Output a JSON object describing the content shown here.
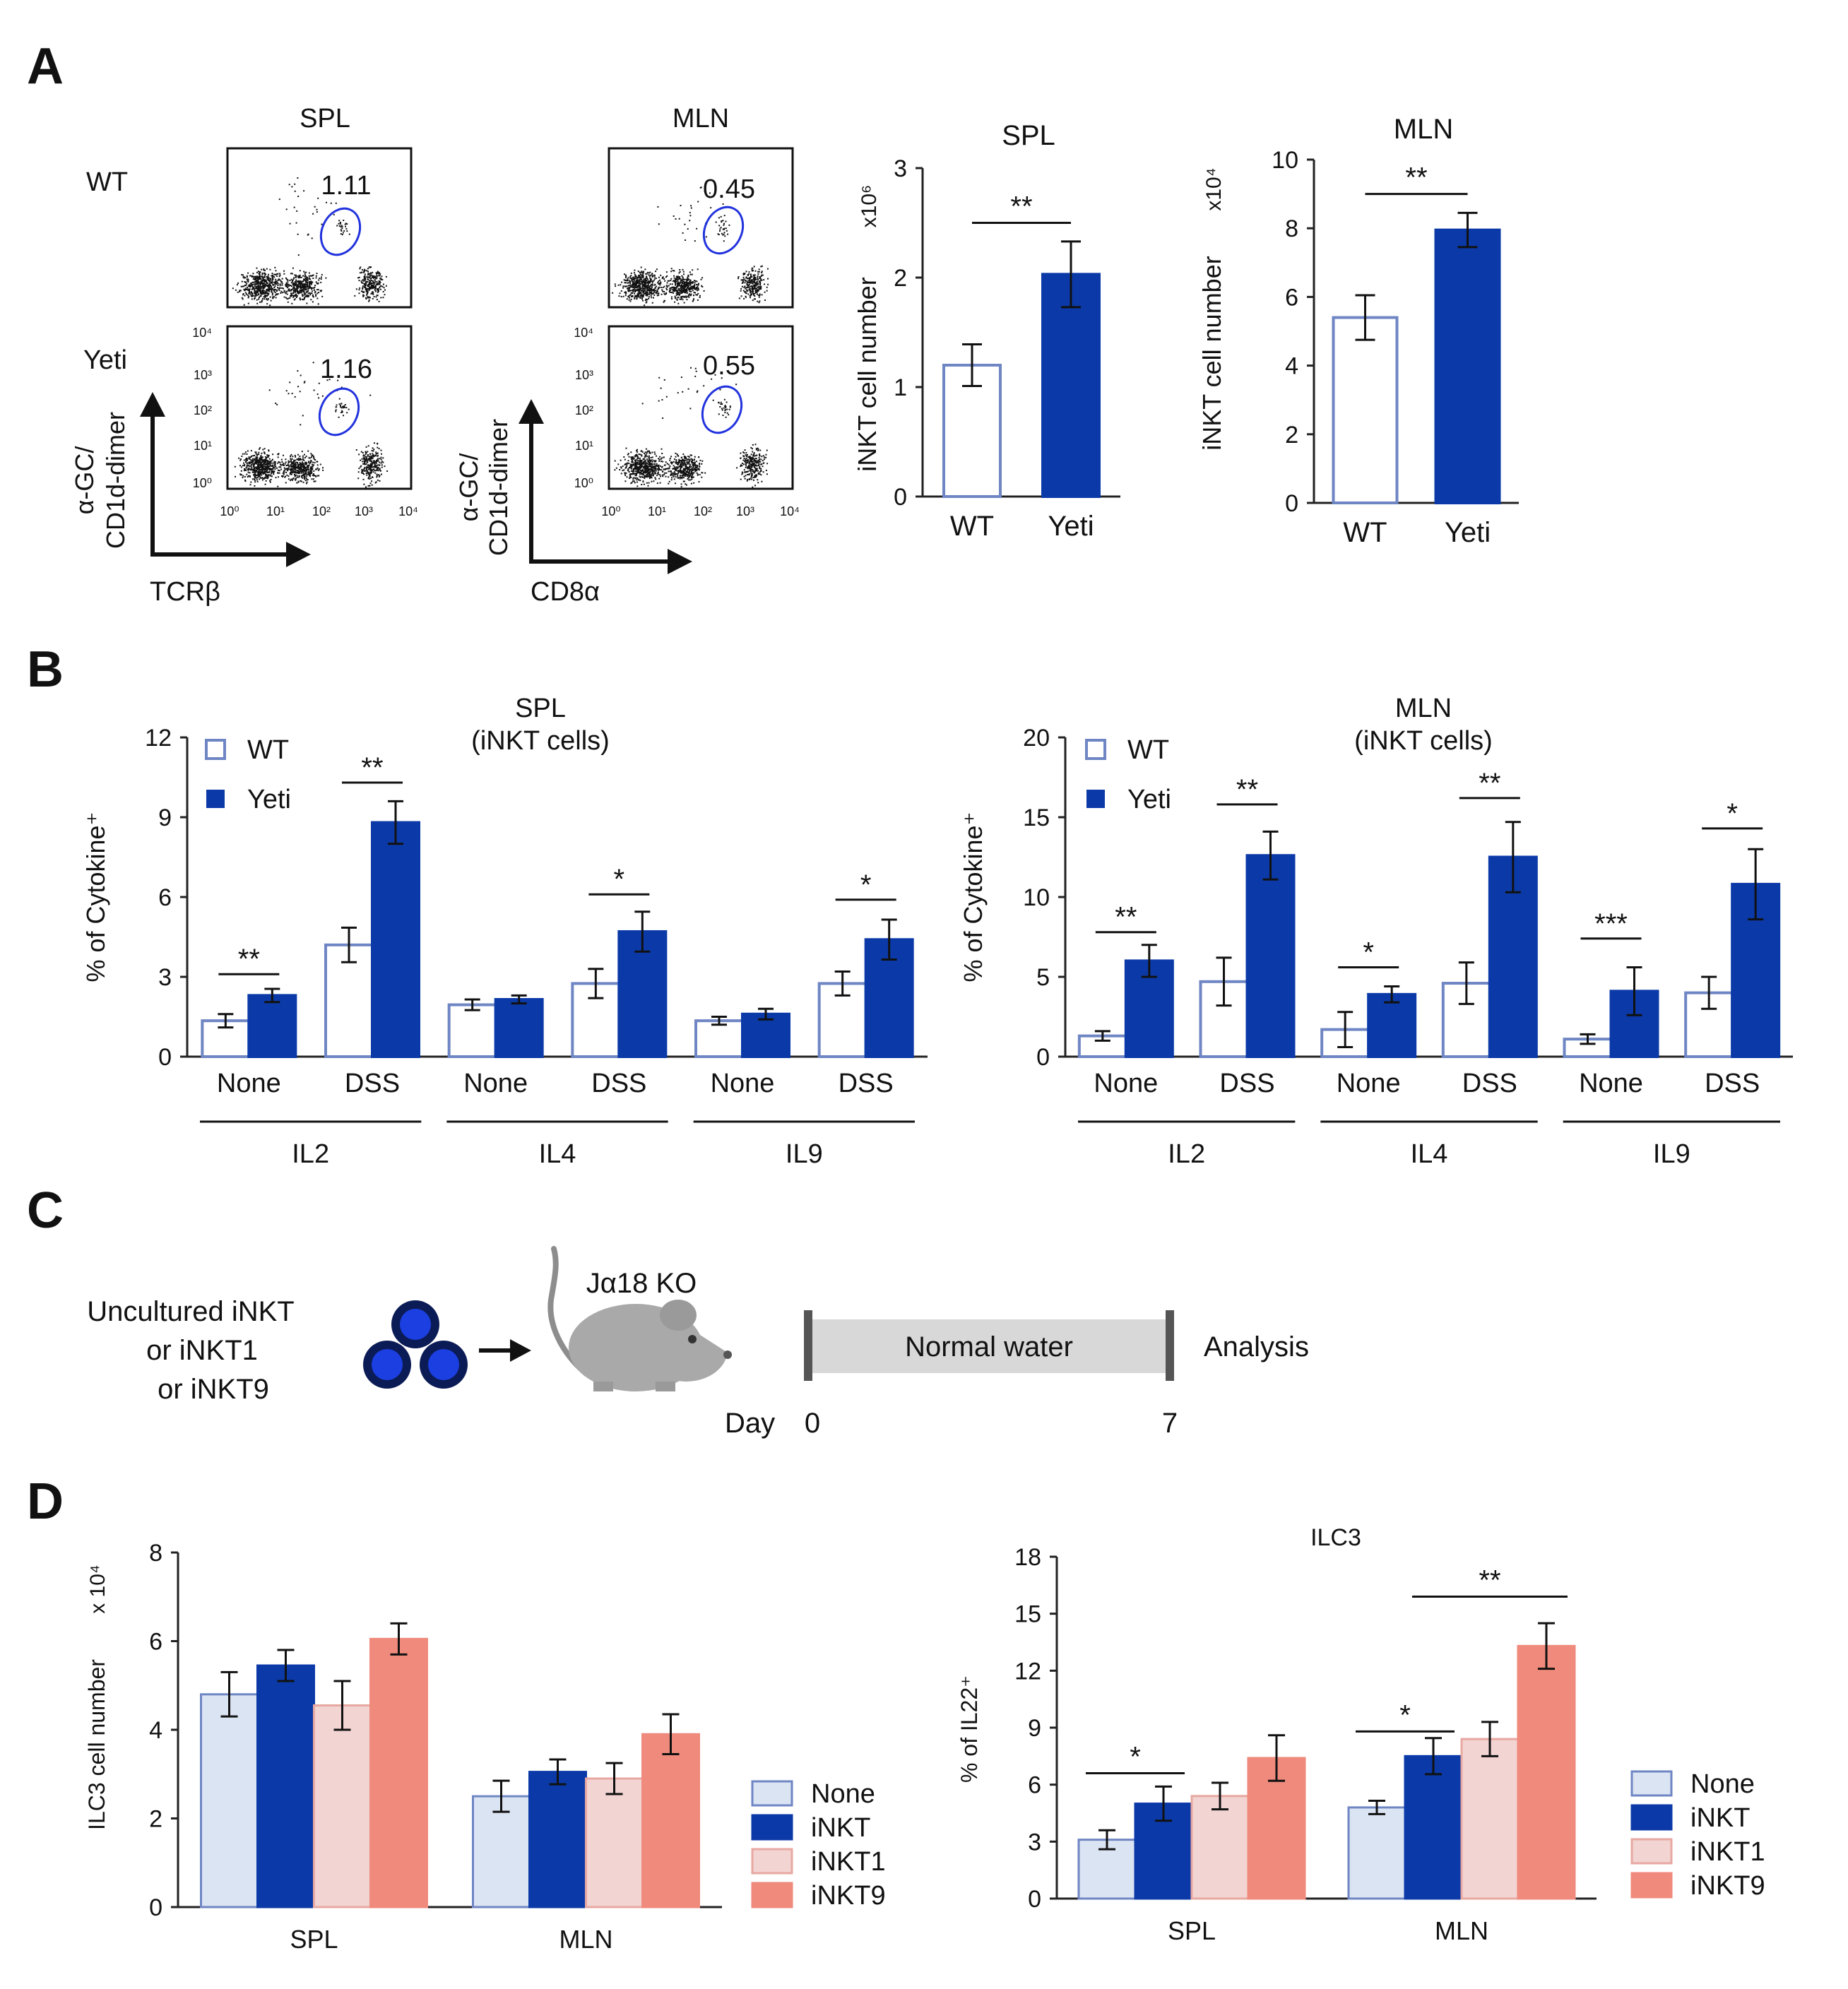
{
  "colors": {
    "wt_fill": "#ffffff",
    "wt_stroke": "#6f86c4",
    "yeti": "#0b3aa8",
    "gate": "#2233dd",
    "none_fill": "#dbe4f3",
    "inkt": "#0b3aa8",
    "inkt1": "#f2d4d2",
    "inkt9": "#ef8a7c",
    "axis": "#222222"
  },
  "panel_labels": {
    "a": "A",
    "b": "B",
    "c": "C",
    "d": "D"
  },
  "panel_a": {
    "flow": {
      "spl_title": "SPL",
      "mln_title": "MLN",
      "row_wt": "WT",
      "row_yeti": "Yeti",
      "spl_wt_gate": "1.11",
      "spl_yeti_gate": "1.16",
      "mln_wt_gate": "0.45",
      "mln_yeti_gate": "0.55",
      "y_axis_line1": "α-GC/",
      "y_axis_line2": "CD1d-dimer",
      "spl_x_axis": "TCRβ",
      "mln_x_axis": "CD8α",
      "ticks": [
        "10⁰",
        "10¹",
        "10²",
        "10³",
        "10⁴"
      ]
    }
  },
  "panel_b": {
    "group_labels": [
      "IL2",
      "IL4",
      "IL9"
    ],
    "sub_labels": [
      "None",
      "DSS",
      "None",
      "DSS",
      "None",
      "DSS"
    ],
    "legend": [
      "WT",
      "Yeti"
    ]
  },
  "panel_c": {
    "donor_line1": "Uncultured iNKT",
    "donor_line2": "or iNKT1",
    "donor_line3": "or iNKT9",
    "recipient": "Jα18 KO",
    "treatment": "Normal water",
    "endpoint": "Analysis",
    "day_label": "Day",
    "day_start": "0",
    "day_end": "7"
  },
  "panel_d": {
    "legend": [
      "None",
      "iNKT",
      "iNKT1",
      "iNKT9"
    ]
  },
  "chart_data": [
    {
      "id": "a_spl",
      "type": "bar",
      "title": "SPL",
      "ylabel": "iNKT cell number",
      "yunit": "x10⁶",
      "categories": [
        "WT",
        "Yeti"
      ],
      "values": [
        1.2,
        2.03
      ],
      "errors": [
        0.19,
        0.3
      ],
      "ylim": [
        0,
        3
      ],
      "yticks": [
        0,
        1,
        2,
        3
      ],
      "sig": [
        {
          "from": 0,
          "to": 1,
          "y": 2.5,
          "label": "**"
        }
      ]
    },
    {
      "id": "a_mln",
      "type": "bar",
      "title": "MLN",
      "ylabel": "iNKT cell number",
      "yunit": "x10⁴",
      "categories": [
        "WT",
        "Yeti"
      ],
      "values": [
        5.4,
        7.95
      ],
      "errors": [
        0.65,
        0.5
      ],
      "ylim": [
        0,
        10
      ],
      "yticks": [
        0,
        2,
        4,
        6,
        8,
        10
      ],
      "sig": [
        {
          "from": 0,
          "to": 1,
          "y": 9.0,
          "label": "**"
        }
      ]
    },
    {
      "id": "b_spl",
      "type": "bar",
      "title": "SPL",
      "subtitle": "(iNKT cells)",
      "ylabel": "% of Cytokine⁺",
      "categories": [
        "None",
        "DSS",
        "None",
        "DSS",
        "None",
        "DSS"
      ],
      "groups": [
        "IL2",
        "IL4",
        "IL9"
      ],
      "series": [
        {
          "name": "WT",
          "values": [
            1.35,
            4.2,
            1.95,
            2.75,
            1.35,
            2.75
          ],
          "errors": [
            0.25,
            0.65,
            0.2,
            0.55,
            0.15,
            0.45
          ]
        },
        {
          "name": "Yeti",
          "values": [
            2.3,
            8.8,
            2.15,
            4.7,
            1.6,
            4.4
          ],
          "errors": [
            0.25,
            0.8,
            0.15,
            0.75,
            0.2,
            0.75
          ]
        }
      ],
      "ylim": [
        0,
        12
      ],
      "yticks": [
        0,
        3,
        6,
        9,
        12
      ],
      "sig": [
        {
          "cat": 0,
          "y": 3.1,
          "label": "**"
        },
        {
          "cat": 1,
          "y": 10.3,
          "label": "**"
        },
        {
          "cat": 3,
          "y": 6.1,
          "label": "*"
        },
        {
          "cat": 5,
          "y": 5.9,
          "label": "*"
        }
      ]
    },
    {
      "id": "b_mln",
      "type": "bar",
      "title": "MLN",
      "subtitle": "(iNKT cells)",
      "ylabel": "% of Cytokine⁺",
      "categories": [
        "None",
        "DSS",
        "None",
        "DSS",
        "None",
        "DSS"
      ],
      "groups": [
        "IL2",
        "IL4",
        "IL9"
      ],
      "series": [
        {
          "name": "WT",
          "values": [
            1.3,
            4.7,
            1.7,
            4.6,
            1.1,
            4.0
          ],
          "errors": [
            0.3,
            1.5,
            1.1,
            1.3,
            0.3,
            1.0
          ]
        },
        {
          "name": "Yeti",
          "values": [
            6.0,
            12.6,
            3.9,
            12.5,
            4.1,
            10.8
          ],
          "errors": [
            1.0,
            1.5,
            0.5,
            2.2,
            1.5,
            2.2
          ]
        }
      ],
      "ylim": [
        0,
        20
      ],
      "yticks": [
        0,
        5,
        10,
        15,
        20
      ],
      "sig": [
        {
          "cat": 0,
          "y": 7.8,
          "label": "**"
        },
        {
          "cat": 1,
          "y": 15.8,
          "label": "**"
        },
        {
          "cat": 2,
          "y": 5.6,
          "label": "*"
        },
        {
          "cat": 3,
          "y": 16.2,
          "label": "**"
        },
        {
          "cat": 4,
          "y": 7.4,
          "label": "***"
        },
        {
          "cat": 5,
          "y": 14.3,
          "label": "*"
        }
      ]
    },
    {
      "id": "d_count",
      "type": "bar",
      "ylabel": "ILC3 cell number",
      "yunit": "x 10⁴",
      "categories": [
        "SPL",
        "MLN"
      ],
      "series": [
        {
          "name": "None",
          "values": [
            4.8,
            2.5
          ],
          "errors": [
            0.5,
            0.35
          ]
        },
        {
          "name": "iNKT",
          "values": [
            5.45,
            3.05
          ],
          "errors": [
            0.35,
            0.28
          ]
        },
        {
          "name": "iNKT1",
          "values": [
            4.55,
            2.9
          ],
          "errors": [
            0.55,
            0.35
          ]
        },
        {
          "name": "iNKT9",
          "values": [
            6.05,
            3.9
          ],
          "errors": [
            0.35,
            0.45
          ]
        }
      ],
      "ylim": [
        0,
        8
      ],
      "yticks": [
        0,
        2,
        4,
        6,
        8
      ],
      "legend_position": "right"
    },
    {
      "id": "d_il22",
      "type": "bar",
      "title": "ILC3",
      "ylabel": "% of IL22⁺",
      "categories": [
        "SPL",
        "MLN"
      ],
      "series": [
        {
          "name": "None",
          "values": [
            3.1,
            4.8
          ],
          "errors": [
            0.5,
            0.35
          ]
        },
        {
          "name": "iNKT",
          "values": [
            5.0,
            7.5
          ],
          "errors": [
            0.9,
            0.95
          ]
        },
        {
          "name": "iNKT1",
          "values": [
            5.4,
            8.4
          ],
          "errors": [
            0.7,
            0.9
          ]
        },
        {
          "name": "iNKT9",
          "values": [
            7.4,
            13.3
          ],
          "errors": [
            1.2,
            1.2
          ]
        }
      ],
      "ylim": [
        0,
        18
      ],
      "yticks": [
        0,
        3,
        6,
        9,
        12,
        15,
        18
      ],
      "legend_position": "right",
      "sig": [
        {
          "cat": 0,
          "s1": 0,
          "s2": 1,
          "y": 6.6,
          "label": "*"
        },
        {
          "cat": 1,
          "s1": 0,
          "s2": 1,
          "y": 8.8,
          "label": "*"
        },
        {
          "cat": 1,
          "s1": 1,
          "s2": 3,
          "y": 15.9,
          "label": "**"
        }
      ]
    }
  ]
}
